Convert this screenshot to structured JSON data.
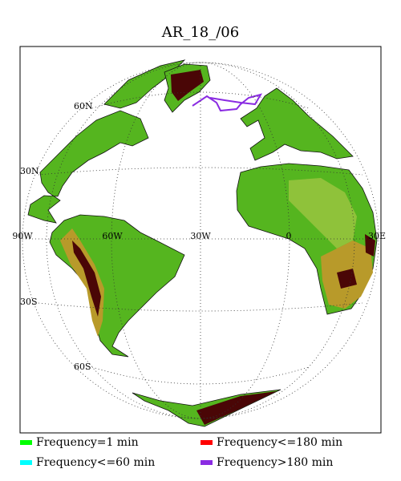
{
  "map": {
    "title": "AR_18_/06",
    "lat_labels": [
      "60N",
      "30N",
      "30S",
      "60S"
    ],
    "lon_labels": [
      "90W",
      "60W",
      "30W",
      "0",
      "30E"
    ]
  },
  "legend": [
    {
      "label": "Frequency=1 min",
      "color": "#00ff00"
    },
    {
      "label": "Frequency<=180 min",
      "color": "#ff0000"
    },
    {
      "label": "Frequency<=60 min",
      "color": "#00ffff"
    },
    {
      "label": "Frequency>180 min",
      "color": "#8a2be2"
    }
  ]
}
